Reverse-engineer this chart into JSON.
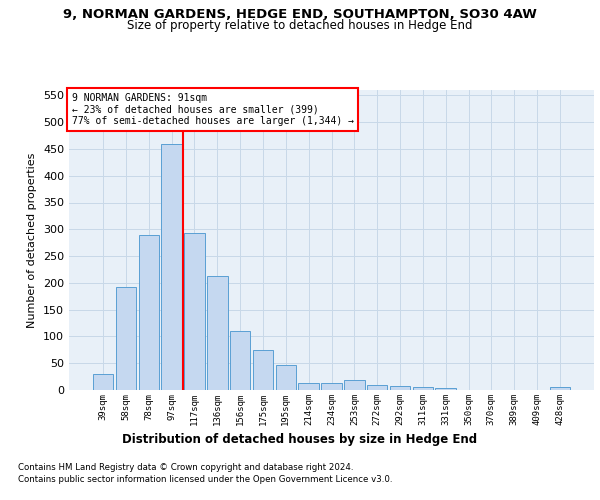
{
  "title1": "9, NORMAN GARDENS, HEDGE END, SOUTHAMPTON, SO30 4AW",
  "title2": "Size of property relative to detached houses in Hedge End",
  "xlabel": "Distribution of detached houses by size in Hedge End",
  "ylabel": "Number of detached properties",
  "footnote1": "Contains HM Land Registry data © Crown copyright and database right 2024.",
  "footnote2": "Contains public sector information licensed under the Open Government Licence v3.0.",
  "annotation_line1": "9 NORMAN GARDENS: 91sqm",
  "annotation_line2": "← 23% of detached houses are smaller (399)",
  "annotation_line3": "77% of semi-detached houses are larger (1,344) →",
  "categories": [
    "39sqm",
    "58sqm",
    "78sqm",
    "97sqm",
    "117sqm",
    "136sqm",
    "156sqm",
    "175sqm",
    "195sqm",
    "214sqm",
    "234sqm",
    "253sqm",
    "272sqm",
    "292sqm",
    "311sqm",
    "331sqm",
    "350sqm",
    "370sqm",
    "389sqm",
    "409sqm",
    "428sqm"
  ],
  "values": [
    30,
    192,
    290,
    460,
    293,
    213,
    110,
    74,
    47,
    13,
    13,
    18,
    9,
    8,
    5,
    4,
    0,
    0,
    0,
    0,
    5
  ],
  "bar_color": "#c5d8f0",
  "bar_edge_color": "#5a9fd4",
  "vline_x_index": 3.5,
  "vline_color": "red",
  "ylim": [
    0,
    560
  ],
  "yticks": [
    0,
    50,
    100,
    150,
    200,
    250,
    300,
    350,
    400,
    450,
    500,
    550
  ],
  "grid_color": "#c8d8e8",
  "bg_color": "#e8f0f8"
}
